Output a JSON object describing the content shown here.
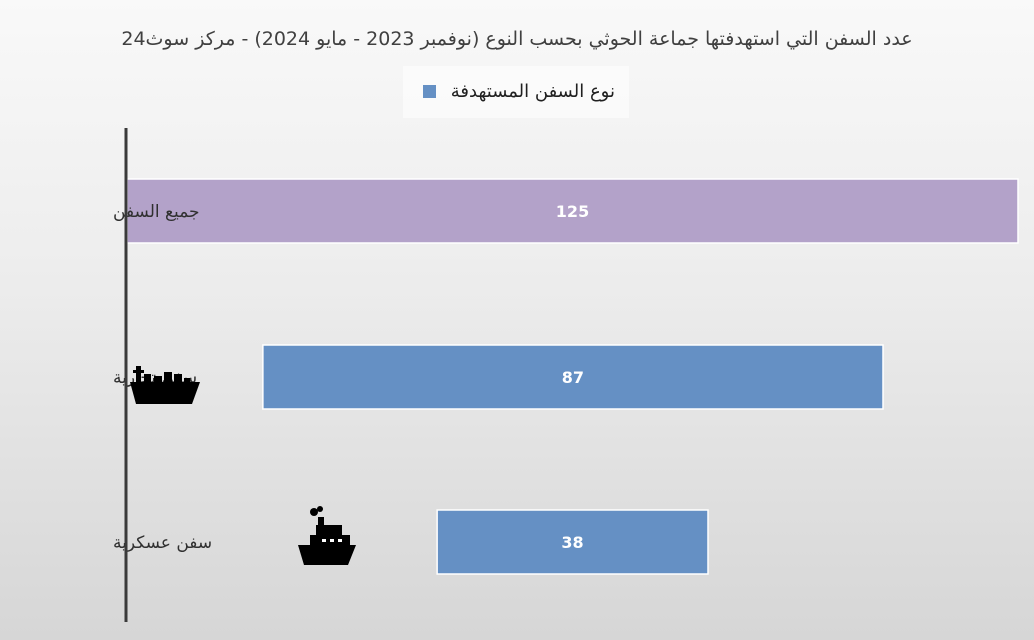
{
  "title": "عدد السفن التي استهدفتها جماعة الحوثي بحسب النوع (نوفمبر 2023 - مايو 2024)  - مركز سوث24",
  "legend": {
    "label": "نوع السفن المستهدفة",
    "color": "#6590c4"
  },
  "colors": {
    "highlight": "#b3a2c9",
    "series": "#6590c4",
    "axis": "#3a3a3a",
    "icon": "#000000"
  },
  "chart_data": {
    "type": "bar",
    "orientation": "horizontal",
    "categories": [
      "جميع السفن",
      "سفن تجارية",
      "سفن عسكرية"
    ],
    "values": [
      125,
      87,
      38
    ],
    "xlim": [
      0,
      125
    ],
    "grid": false,
    "legend_position": "top-center",
    "icons": [
      "",
      "cargo-ship-icon",
      "warship-icon"
    ],
    "series": [
      {
        "name": "نوع السفن المستهدفة",
        "values": [
          125,
          87,
          38
        ]
      }
    ]
  }
}
